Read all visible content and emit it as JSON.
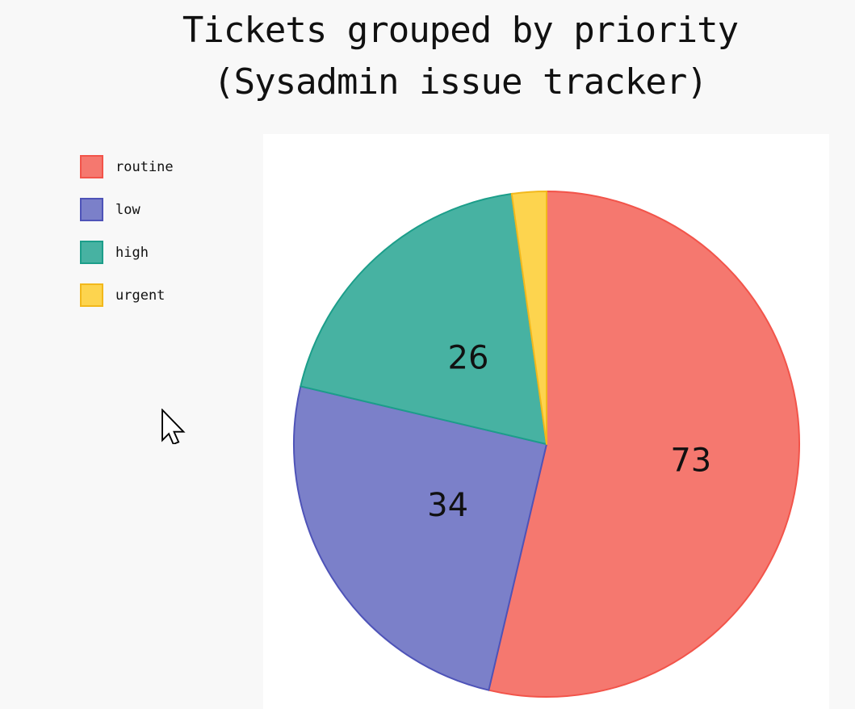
{
  "page": {
    "background": "#f8f8f8",
    "plot_background": "#ffffff"
  },
  "title": {
    "line1": "Tickets grouped by priority",
    "line2": "(Sysadmin issue tracker)",
    "color": "#111111"
  },
  "chart_data": {
    "type": "pie",
    "title": "Tickets grouped by priority (Sysadmin issue tracker)",
    "categories": [
      "routine",
      "low",
      "high",
      "urgent"
    ],
    "values": [
      73,
      34,
      26,
      3
    ],
    "slice_value_labels": [
      "73",
      "34",
      "26",
      ""
    ],
    "labels_visible": [
      true,
      true,
      true,
      false
    ],
    "colors": [
      "#F5786F",
      "#7B80C9",
      "#47B2A2",
      "#FDD44E"
    ],
    "border_colors": [
      "#F2544A",
      "#4E53B8",
      "#1C9E8A",
      "#F2B81C"
    ],
    "start_angle": "top",
    "direction": "clockwise",
    "legend_position": "left",
    "slice_label_color": "#111111"
  }
}
